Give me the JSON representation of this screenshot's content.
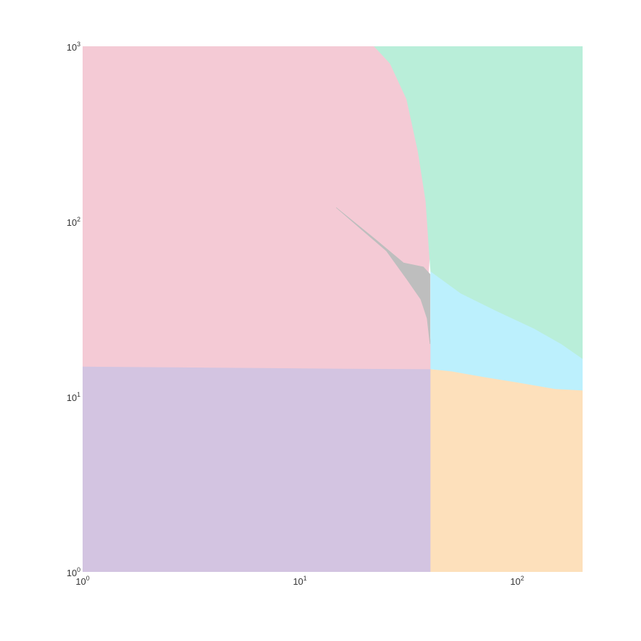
{
  "chart_data": {
    "type": "area",
    "title": "",
    "xlabel": "",
    "ylabel": "",
    "x_scale": "log",
    "y_scale": "log",
    "xlim": [
      1,
      200
    ],
    "ylim": [
      1,
      1000
    ],
    "grid": false,
    "x_ticks": [
      {
        "value": 1,
        "base": "10",
        "exp": "0"
      },
      {
        "value": 10,
        "base": "10",
        "exp": "1"
      },
      {
        "value": 100,
        "base": "10",
        "exp": "2"
      }
    ],
    "y_ticks": [
      {
        "value": 1,
        "base": "10",
        "exp": "0"
      },
      {
        "value": 10,
        "base": "10",
        "exp": "1"
      },
      {
        "value": 100,
        "base": "10",
        "exp": "2"
      },
      {
        "value": 1000,
        "base": "10",
        "exp": "3"
      }
    ],
    "regions": [
      {
        "id": "purple",
        "color": "#d3c4e1",
        "polygon": [
          [
            1,
            1
          ],
          [
            40,
            1
          ],
          [
            40,
            14.4
          ],
          [
            16,
            14.5
          ],
          [
            1,
            14.9
          ]
        ]
      },
      {
        "id": "orange",
        "color": "#fde0bb",
        "polygon": [
          [
            40,
            1
          ],
          [
            200,
            1
          ],
          [
            200,
            10.9
          ],
          [
            150,
            11.1
          ],
          [
            100,
            12.1
          ],
          [
            70,
            13.0
          ],
          [
            50,
            14.0
          ],
          [
            40,
            14.3
          ]
        ]
      },
      {
        "id": "pink",
        "color": "#f4cad5",
        "polygon": [
          [
            1,
            14.9
          ],
          [
            16,
            14.5
          ],
          [
            40,
            14.4
          ],
          [
            40,
            20
          ],
          [
            38.5,
            28
          ],
          [
            36,
            36
          ],
          [
            31,
            47
          ],
          [
            25,
            68
          ],
          [
            14.7,
            120
          ],
          [
            22,
            80
          ],
          [
            30,
            58
          ],
          [
            37,
            55
          ],
          [
            39,
            50
          ],
          [
            39.5,
            64
          ],
          [
            38,
            130
          ],
          [
            35,
            250
          ],
          [
            31,
            500
          ],
          [
            26,
            800
          ],
          [
            22,
            1000
          ],
          [
            1,
            1000
          ]
        ]
      },
      {
        "id": "gray",
        "color": "#bebebe",
        "polygon": [
          [
            14.7,
            120
          ],
          [
            25,
            68
          ],
          [
            31,
            47
          ],
          [
            36,
            36
          ],
          [
            38.5,
            28
          ],
          [
            39.7,
            20
          ],
          [
            39.7,
            50
          ],
          [
            37,
            55
          ],
          [
            30,
            58
          ],
          [
            22,
            80
          ]
        ]
      },
      {
        "id": "cyan",
        "color": "#bcf0fd",
        "polygon": [
          [
            40,
            14.4
          ],
          [
            50,
            14.0
          ],
          [
            70,
            13.0
          ],
          [
            100,
            12.1
          ],
          [
            150,
            11.1
          ],
          [
            200,
            10.9
          ],
          [
            200,
            16.5
          ],
          [
            160,
            20
          ],
          [
            120,
            24.5
          ],
          [
            80,
            31
          ],
          [
            55,
            39
          ],
          [
            40,
            52
          ],
          [
            40,
            20
          ]
        ]
      },
      {
        "id": "green",
        "color": "#b9eed9",
        "polygon": [
          [
            40,
            52
          ],
          [
            55,
            39
          ],
          [
            80,
            31
          ],
          [
            120,
            24.5
          ],
          [
            160,
            20
          ],
          [
            200,
            16.5
          ],
          [
            200,
            1000
          ],
          [
            22,
            1000
          ],
          [
            26,
            800
          ],
          [
            31,
            500
          ],
          [
            35,
            250
          ],
          [
            38,
            130
          ],
          [
            39.5,
            64
          ]
        ]
      }
    ]
  }
}
